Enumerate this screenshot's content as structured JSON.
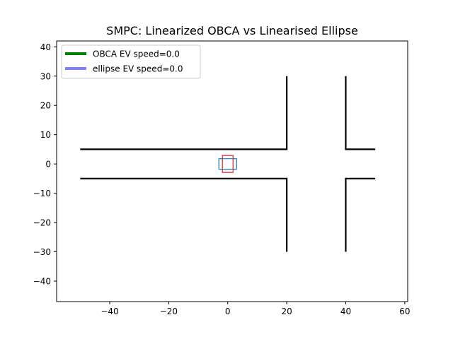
{
  "chart_data": {
    "type": "line",
    "title": "SMPC: Linearized OBCA vs Linearised Ellipse",
    "xlabel": "",
    "ylabel": "",
    "xlim": [
      -58,
      61
    ],
    "ylim": [
      -47,
      42
    ],
    "xticks": [
      -40,
      -20,
      0,
      20,
      40,
      60
    ],
    "yticks": [
      -40,
      -30,
      -20,
      -10,
      0,
      10,
      20,
      30,
      40
    ],
    "grid": false,
    "legend_position": "upper left",
    "series": [
      {
        "name": "OBCA EV speed=0.0",
        "color": "#008000",
        "values": []
      },
      {
        "name": "ellipse EV speed=0.0",
        "color": "#7f7fff",
        "values": []
      }
    ],
    "road_boundaries": {
      "color": "#000000",
      "lines": [
        [
          [
            -50,
            5
          ],
          [
            20,
            5
          ],
          [
            20,
            30
          ]
        ],
        [
          [
            -50,
            -5
          ],
          [
            20,
            -5
          ],
          [
            20,
            -30
          ]
        ],
        [
          [
            40,
            30
          ],
          [
            40,
            5
          ],
          [
            50,
            5
          ]
        ],
        [
          [
            40,
            -30
          ],
          [
            40,
            -5
          ],
          [
            50,
            -5
          ]
        ]
      ]
    },
    "vehicles": [
      {
        "label": "ev-horizontal",
        "color": "#1f77b4",
        "corners": [
          [
            -3,
            -1.8
          ],
          [
            3,
            -1.8
          ],
          [
            3,
            1.8
          ],
          [
            -3,
            1.8
          ]
        ]
      },
      {
        "label": "ev-vertical",
        "color": "#d62728",
        "corners": [
          [
            -1.8,
            -2.9
          ],
          [
            1.8,
            -2.9
          ],
          [
            1.8,
            2.9
          ],
          [
            -1.8,
            2.9
          ]
        ]
      }
    ]
  }
}
